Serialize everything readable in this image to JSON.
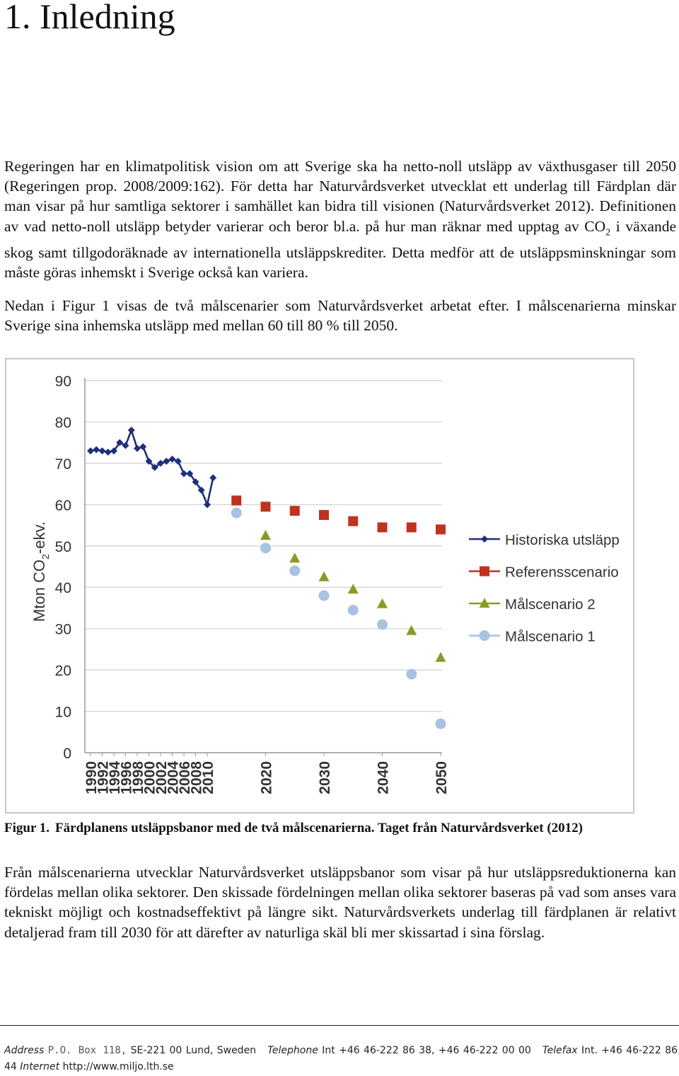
{
  "heading": "1. Inledning",
  "paragraphs": {
    "p1_a": "Regeringen har en klimatpolitisk vision om att Sverige ska ha netto-noll utsläpp av växthusgaser till 2050 (Regeringen prop. 2008/2009:162). För detta har Naturvårdsverket utvecklat ett underlag till Färdplan där man visar på hur samtliga sektorer i samhället kan bidra till visionen (Naturvårdsverket 2012). Definitionen av vad netto-noll utsläpp betyder varierar och beror bl.a. på hur man räknar med upptag av CO",
    "p1_sub": "2",
    "p1_b": " i växande skog samt tillgodoräknade av internationella utsläppskrediter. Detta medför att de utsläppsminskningar som måste göras inhemskt i Sverige också kan variera.",
    "p2": "Nedan i Figur 1 visas de två målscenarier som Naturvårdsverket arbetat efter. I målscenarierna minskar Sverige sina inhemska utsläpp med mellan 60 till 80 % till 2050.",
    "p3": "Från målscenarierna utvecklar Naturvårdsverket utsläppsbanor som visar på hur utsläppsreduktionerna kan fördelas mellan olika sektorer. Den skissade fördelningen mellan olika sektorer baseras på vad som anses vara tekniskt möjligt och kostnadseffektivt på längre sikt. Naturvårdsverkets underlag till färdplanen är relativt detaljerad fram till 2030 för att därefter av naturliga skäl bli mer skissartad i sina förslag."
  },
  "caption": {
    "number": "Figur 1.",
    "text": "Färdplanens utsläppsbanor med de två målscenarierna. Taget från Naturvårdsverket (2012)"
  },
  "chart_data": {
    "type": "scatter",
    "ylabel": "Mton CO2-ekv.",
    "ylabel_main": "Mton CO",
    "ylabel_sub": "2",
    "ylabel_suffix": "-ekv.",
    "ylim": [
      0,
      90
    ],
    "yticks": [
      "0",
      "10",
      "20",
      "30",
      "40",
      "50",
      "60",
      "70",
      "80",
      "90"
    ],
    "xticks": [
      "1990",
      "1992",
      "1994",
      "1996",
      "1998",
      "2000",
      "2002",
      "2004",
      "2006",
      "2008",
      "2010",
      "2020",
      "2030",
      "2040",
      "2050"
    ],
    "grid": true,
    "legend_position": "right",
    "series": [
      {
        "name": "Historiska utsläpp",
        "marker": "diamond-line",
        "color": "#1f2f7a",
        "points": [
          [
            1990,
            73
          ],
          [
            1991,
            73.3
          ],
          [
            1992,
            73
          ],
          [
            1993,
            72.7
          ],
          [
            1994,
            73
          ],
          [
            1995,
            75
          ],
          [
            1996,
            74.3
          ],
          [
            1997,
            78
          ],
          [
            1998,
            73.6
          ],
          [
            1999,
            74
          ],
          [
            2000,
            70.5
          ],
          [
            2001,
            69
          ],
          [
            2002,
            70
          ],
          [
            2003,
            70.5
          ],
          [
            2004,
            71
          ],
          [
            2005,
            70.5
          ],
          [
            2006,
            67.5
          ],
          [
            2007,
            67.5
          ],
          [
            2008,
            65.5
          ],
          [
            2009,
            63.5
          ],
          [
            2010,
            60
          ],
          [
            2011,
            66.5
          ]
        ]
      },
      {
        "name": "Referensscenario",
        "marker": "square",
        "color": "#c0321f",
        "points": [
          [
            2015,
            61
          ],
          [
            2020,
            59.5
          ],
          [
            2025,
            58.5
          ],
          [
            2030,
            57.5
          ],
          [
            2035,
            56
          ],
          [
            2040,
            54.5
          ],
          [
            2045,
            54.5
          ],
          [
            2050,
            54
          ]
        ]
      },
      {
        "name": "Målscenario 2",
        "marker": "triangle",
        "color": "#8a9a28",
        "points": [
          [
            2020,
            52.5
          ],
          [
            2025,
            47
          ],
          [
            2030,
            42.5
          ],
          [
            2035,
            39.5
          ],
          [
            2040,
            36
          ],
          [
            2045,
            29.5
          ],
          [
            2050,
            23
          ]
        ]
      },
      {
        "name": "Målscenario 1",
        "marker": "circle",
        "color": "#a7c2e2",
        "points": [
          [
            2015,
            58
          ],
          [
            2020,
            49.5
          ],
          [
            2025,
            44
          ],
          [
            2030,
            38
          ],
          [
            2035,
            34.5
          ],
          [
            2040,
            31
          ],
          [
            2045,
            19
          ],
          [
            2050,
            7
          ]
        ]
      }
    ]
  },
  "footer": {
    "address_label": "Address",
    "address_box": "P.O. Box 118,",
    "address_text": "SE-221 00 Lund, Sweden",
    "telephone_label": "Telephone",
    "telephone_text": "Int +46 46-222 86 38, +46 46-222 00 00",
    "telefax_label": "Telefax",
    "telefax_text": "Int. +46 46-222 86 44",
    "internet_label": "Internet",
    "internet_text": "http://www.miljo.lth.se"
  }
}
